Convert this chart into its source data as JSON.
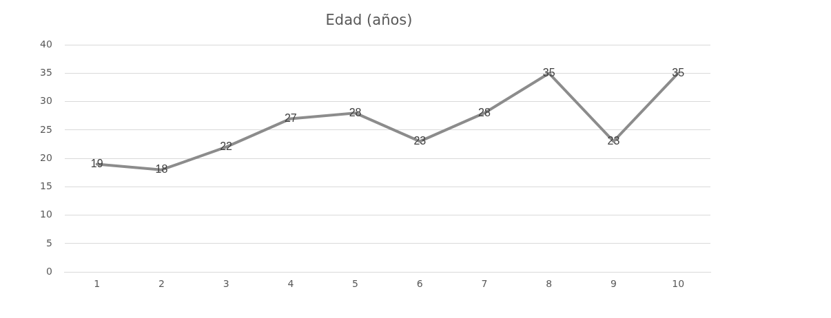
{
  "chart_data": {
    "type": "line",
    "title": "Edad (años)",
    "categories": [
      "1",
      "2",
      "3",
      "4",
      "5",
      "6",
      "7",
      "8",
      "9",
      "10"
    ],
    "series": [
      {
        "color": "#8c8c8c",
        "values": [
          19,
          18,
          22,
          27,
          28,
          23,
          28,
          35,
          23,
          35
        ]
      }
    ],
    "ylim": [
      0,
      40
    ],
    "yticks": [
      0,
      5,
      10,
      15,
      20,
      25,
      30,
      35,
      40
    ],
    "grid": "y",
    "legend": false,
    "marker": "none",
    "line_style": "solid",
    "data_labels": true
  }
}
